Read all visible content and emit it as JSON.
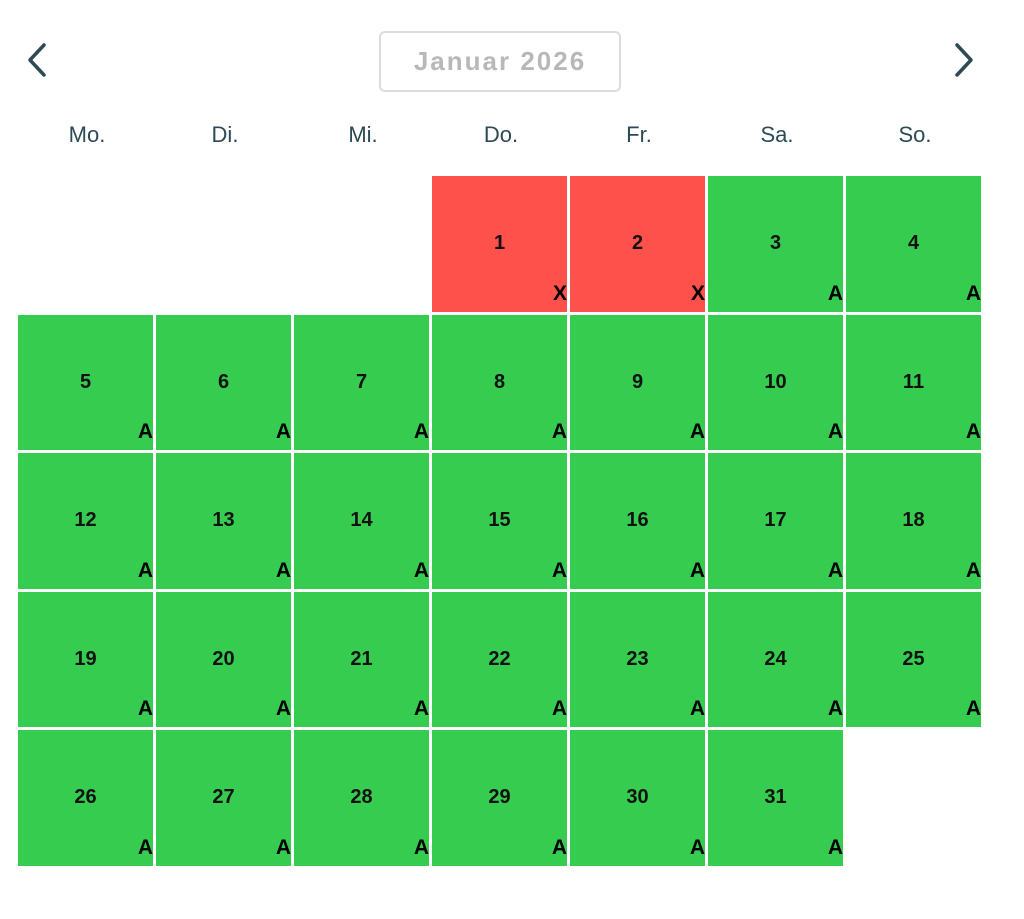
{
  "header": {
    "month_title": "Januar 2026",
    "prev_icon": "chevron-left-icon",
    "next_icon": "chevron-right-icon"
  },
  "weekdays": [
    "Mo.",
    "Di.",
    "Mi.",
    "Do.",
    "Fr.",
    "Sa.",
    "So."
  ],
  "colors": {
    "available": "#36cc50",
    "unavailable": "#fe514b",
    "nav_arrow": "#2d4a55",
    "weekday_text": "#2d4a55",
    "title_text": "#b8b8b8"
  },
  "calendar": {
    "leading_empty": 3,
    "days": [
      {
        "day": "1",
        "status": "X"
      },
      {
        "day": "2",
        "status": "X"
      },
      {
        "day": "3",
        "status": "A"
      },
      {
        "day": "4",
        "status": "A"
      },
      {
        "day": "5",
        "status": "A"
      },
      {
        "day": "6",
        "status": "A"
      },
      {
        "day": "7",
        "status": "A"
      },
      {
        "day": "8",
        "status": "A"
      },
      {
        "day": "9",
        "status": "A"
      },
      {
        "day": "10",
        "status": "A"
      },
      {
        "day": "11",
        "status": "A"
      },
      {
        "day": "12",
        "status": "A"
      },
      {
        "day": "13",
        "status": "A"
      },
      {
        "day": "14",
        "status": "A"
      },
      {
        "day": "15",
        "status": "A"
      },
      {
        "day": "16",
        "status": "A"
      },
      {
        "day": "17",
        "status": "A"
      },
      {
        "day": "18",
        "status": "A"
      },
      {
        "day": "19",
        "status": "A"
      },
      {
        "day": "20",
        "status": "A"
      },
      {
        "day": "21",
        "status": "A"
      },
      {
        "day": "22",
        "status": "A"
      },
      {
        "day": "23",
        "status": "A"
      },
      {
        "day": "24",
        "status": "A"
      },
      {
        "day": "25",
        "status": "A"
      },
      {
        "day": "26",
        "status": "A"
      },
      {
        "day": "27",
        "status": "A"
      },
      {
        "day": "28",
        "status": "A"
      },
      {
        "day": "29",
        "status": "A"
      },
      {
        "day": "30",
        "status": "A"
      },
      {
        "day": "31",
        "status": "A"
      }
    ]
  }
}
